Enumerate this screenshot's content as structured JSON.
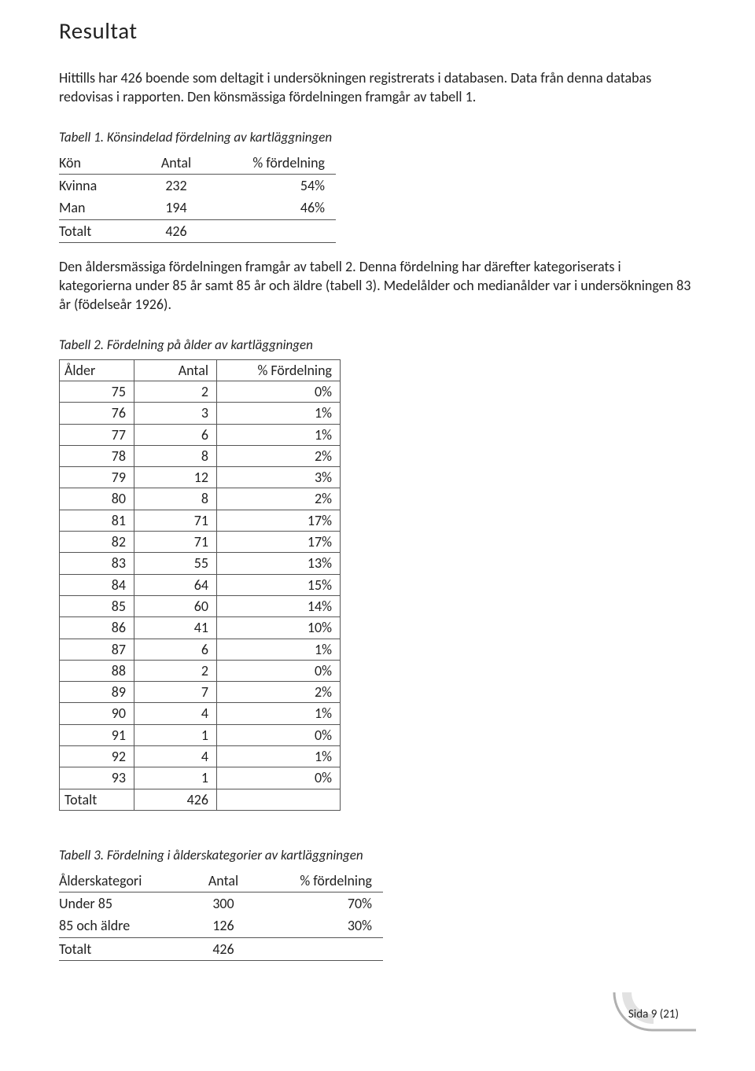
{
  "title": "Resultat",
  "intro": "Hittills har 426 boende som deltagit i undersökningen registrerats i databasen. Data från denna databas redovisas i rapporten. Den könsmässiga fördelningen framgår av tabell 1.",
  "table1": {
    "caption_label": "Tabell 1.",
    "caption_rest": " Könsindelad fördelning av kartläggningen",
    "headers": [
      "Kön",
      "Antal",
      "% fördelning"
    ],
    "rows": [
      [
        "Kvinna",
        "232",
        "54%"
      ],
      [
        "Man",
        "194",
        "46%"
      ],
      [
        "Totalt",
        "426",
        ""
      ]
    ]
  },
  "mid_text": "Den åldersmässiga fördelningen framgår av tabell 2. Denna fördelning har därefter kategoriserats i kategorierna under 85 år samt 85 år och äldre (tabell 3). Medelålder och medianålder var i undersökningen 83 år (födelseår 1926).",
  "table2": {
    "caption_label": "Tabell 2.",
    "caption_rest": " Fördelning på ålder av kartläggningen",
    "headers": [
      "Ålder",
      "Antal",
      "% Fördelning"
    ],
    "rows": [
      [
        "75",
        "2",
        "0%"
      ],
      [
        "76",
        "3",
        "1%"
      ],
      [
        "77",
        "6",
        "1%"
      ],
      [
        "78",
        "8",
        "2%"
      ],
      [
        "79",
        "12",
        "3%"
      ],
      [
        "80",
        "8",
        "2%"
      ],
      [
        "81",
        "71",
        "17%"
      ],
      [
        "82",
        "71",
        "17%"
      ],
      [
        "83",
        "55",
        "13%"
      ],
      [
        "84",
        "64",
        "15%"
      ],
      [
        "85",
        "60",
        "14%"
      ],
      [
        "86",
        "41",
        "10%"
      ],
      [
        "87",
        "6",
        "1%"
      ],
      [
        "88",
        "2",
        "0%"
      ],
      [
        "89",
        "7",
        "2%"
      ],
      [
        "90",
        "4",
        "1%"
      ],
      [
        "91",
        "1",
        "0%"
      ],
      [
        "92",
        "4",
        "1%"
      ],
      [
        "93",
        "1",
        "0%"
      ]
    ],
    "total_row": [
      "Totalt",
      "426",
      ""
    ]
  },
  "table3": {
    "caption_label": "Tabell 3.",
    "caption_rest": " Fördelning i ålderskategorier av kartläggningen",
    "headers": [
      "Ålderskategori",
      "Antal",
      "% fördelning"
    ],
    "rows": [
      [
        "Under 85",
        "300",
        "70%"
      ],
      [
        "85 och äldre",
        "126",
        "30%"
      ],
      [
        "Totalt",
        "426",
        ""
      ]
    ]
  },
  "page_label": "Sida 9 (21)",
  "arc_color": "#b0b0b0"
}
